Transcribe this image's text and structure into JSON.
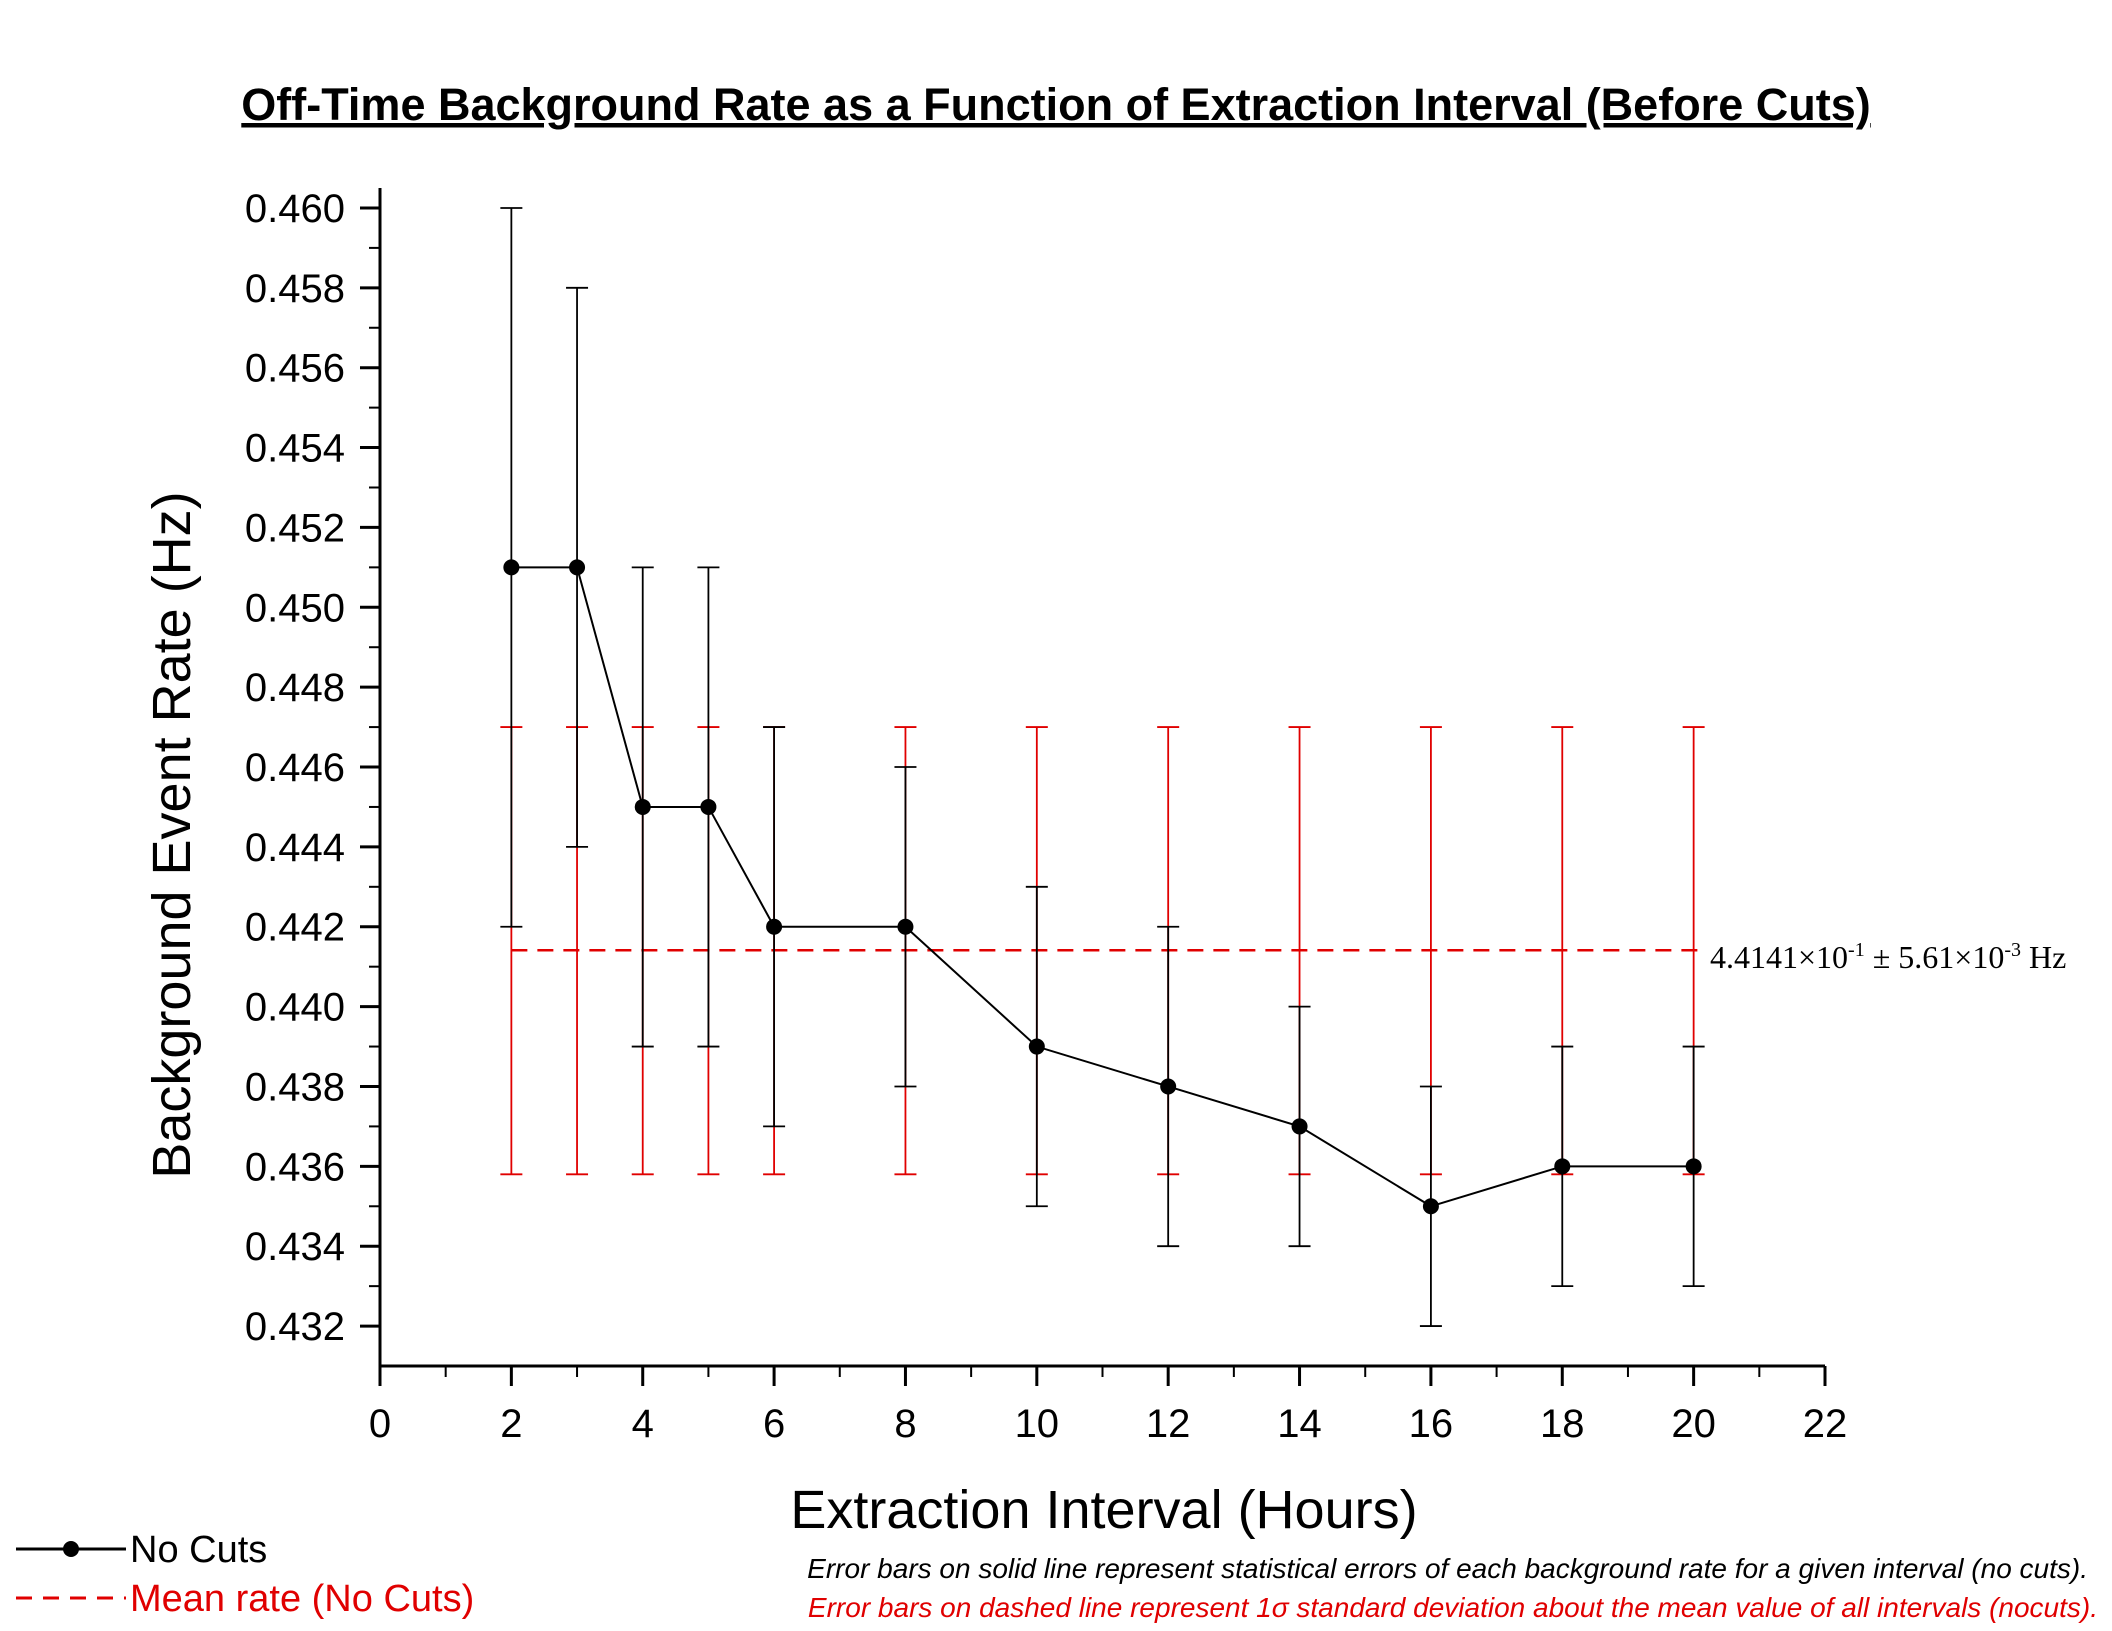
{
  "chart_data": {
    "type": "line",
    "title": "Off-Time Background Rate as a Function of Extraction Interval (Before Cuts)",
    "xlabel": "Extraction Interval (Hours)",
    "ylabel": "Background Event Rate (Hz)",
    "xlim": [
      0,
      22
    ],
    "ylim": [
      0.431,
      0.4605
    ],
    "xticks": [
      "0",
      "2",
      "4",
      "6",
      "8",
      "10",
      "12",
      "14",
      "16",
      "18",
      "20",
      "22"
    ],
    "yticks": [
      "0.432",
      "0.434",
      "0.436",
      "0.438",
      "0.440",
      "0.442",
      "0.444",
      "0.446",
      "0.448",
      "0.450",
      "0.452",
      "0.454",
      "0.456",
      "0.458",
      "0.460"
    ],
    "series": [
      {
        "name": "No Cuts",
        "color": "#000000",
        "style": "solid-with-markers",
        "x": [
          2,
          3,
          4,
          5,
          6,
          8,
          10,
          12,
          14,
          16,
          18,
          20
        ],
        "y": [
          0.451,
          0.451,
          0.445,
          0.445,
          0.442,
          0.442,
          0.439,
          0.438,
          0.437,
          0.435,
          0.436,
          0.436
        ],
        "err_low": [
          0.442,
          0.444,
          0.439,
          0.439,
          0.437,
          0.438,
          0.435,
          0.434,
          0.434,
          0.432,
          0.433,
          0.433
        ],
        "err_high": [
          0.46,
          0.458,
          0.451,
          0.451,
          0.447,
          0.446,
          0.443,
          0.442,
          0.44,
          0.438,
          0.439,
          0.439
        ]
      },
      {
        "name": "Mean rate (No Cuts)",
        "color": "#e00000",
        "style": "dashed",
        "value": 0.44141,
        "err_x": [
          2,
          3,
          4,
          5,
          6,
          8,
          10,
          12,
          14,
          16,
          18,
          20
        ],
        "err_low": 0.4358,
        "err_high": 0.447
      }
    ],
    "mean_label": {
      "mantissa": "4.4141×10",
      "exp1": "-1",
      "mid": " ± 5.61×10",
      "exp2": "-3",
      "unit": " Hz"
    },
    "legend": {
      "placement": "bottom-left",
      "items": [
        "No Cuts",
        "Mean rate (No Cuts)"
      ]
    },
    "notes": [
      "Error bars on solid line represent statistical errors of each background rate for a given interval (no cuts).",
      "Error bars on dashed line represent 1σ standard deviation about the mean value of all intervals (nocuts)."
    ]
  }
}
